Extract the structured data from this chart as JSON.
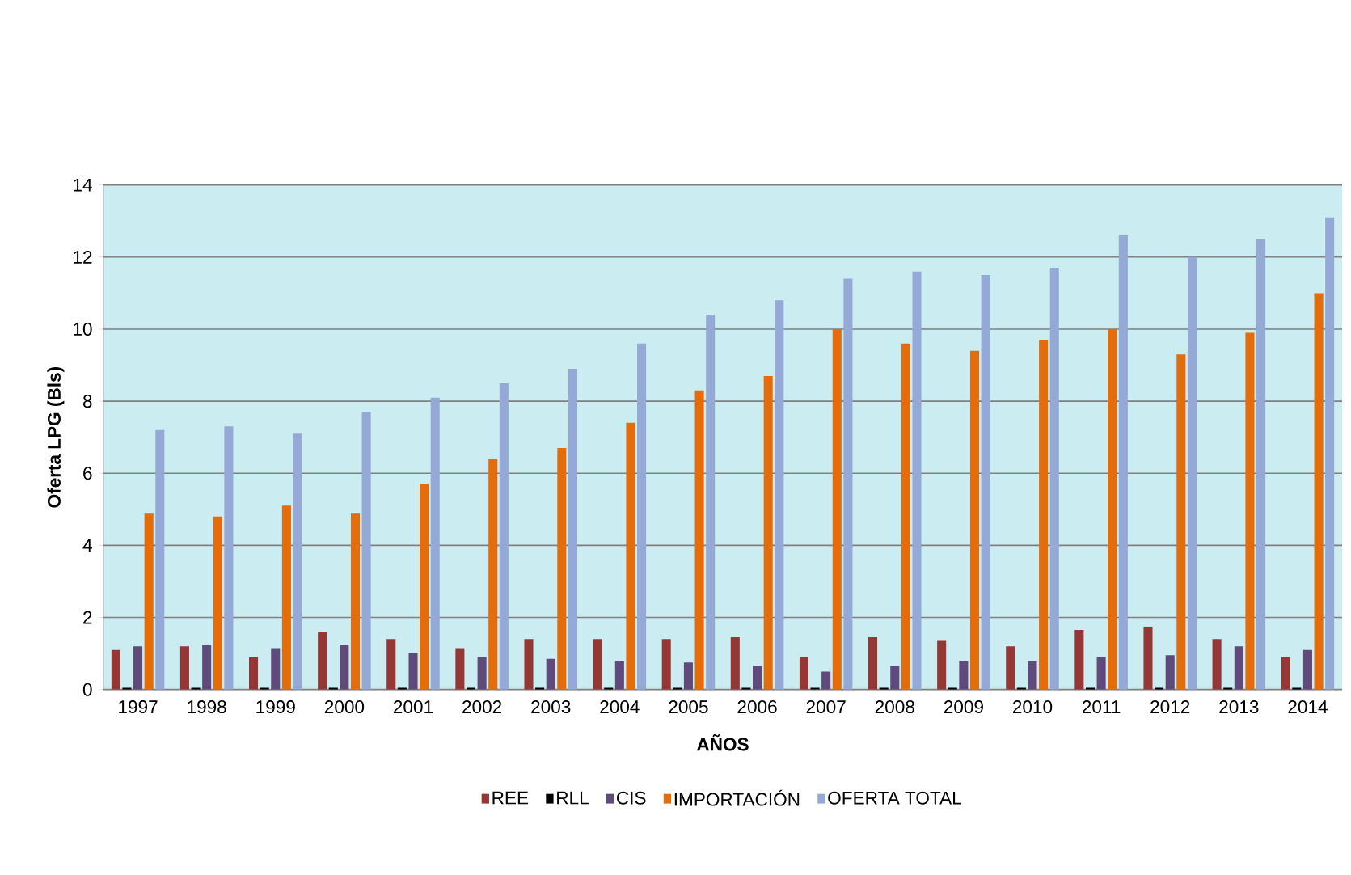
{
  "chart_data": {
    "type": "bar",
    "xlabel": "AÑOS",
    "ylabel": "Oferta LPG (Bls)",
    "categories": [
      "1997",
      "1998",
      "1999",
      "2000",
      "2001",
      "2002",
      "2003",
      "2004",
      "2005",
      "2006",
      "2007",
      "2008",
      "2009",
      "2010",
      "2011",
      "2012",
      "2013",
      "2014"
    ],
    "series": [
      {
        "name": "REE",
        "color": "#953735",
        "values": [
          1.1,
          1.2,
          0.9,
          1.6,
          1.4,
          1.15,
          1.4,
          1.4,
          1.4,
          1.45,
          0.9,
          1.45,
          1.35,
          1.2,
          1.65,
          1.75,
          1.4,
          0.9
        ]
      },
      {
        "name": "RLL",
        "color": "#000000",
        "values": [
          0.05,
          0.05,
          0.05,
          0.05,
          0.05,
          0.05,
          0.05,
          0.05,
          0.05,
          0.05,
          0.05,
          0.05,
          0.05,
          0.05,
          0.05,
          0.05,
          0.05,
          0.05
        ]
      },
      {
        "name": "CIS",
        "color": "#604a7b",
        "values": [
          1.2,
          1.25,
          1.15,
          1.25,
          1.0,
          0.9,
          0.85,
          0.8,
          0.75,
          0.65,
          0.5,
          0.65,
          0.8,
          0.8,
          0.9,
          0.95,
          1.2,
          1.1
        ]
      },
      {
        "name": "IMPORTACIÓN",
        "color": "#e46c0a",
        "values": [
          4.9,
          4.8,
          5.1,
          4.9,
          5.7,
          6.4,
          6.7,
          7.4,
          8.3,
          8.7,
          10.0,
          9.6,
          9.4,
          9.7,
          10.0,
          9.3,
          9.9,
          11.0
        ]
      },
      {
        "name": "OFERTA TOTAL",
        "color": "#95a9d6",
        "values": [
          7.2,
          7.3,
          7.1,
          7.7,
          8.1,
          8.5,
          8.9,
          9.6,
          10.4,
          10.8,
          11.4,
          11.6,
          11.5,
          11.7,
          12.6,
          12.0,
          12.5,
          13.1
        ]
      }
    ],
    "ylim": [
      0,
      14
    ],
    "yticks": [
      0,
      2,
      4,
      6,
      8,
      10,
      12,
      14
    ],
    "grid": "y",
    "legend": "bottom"
  }
}
